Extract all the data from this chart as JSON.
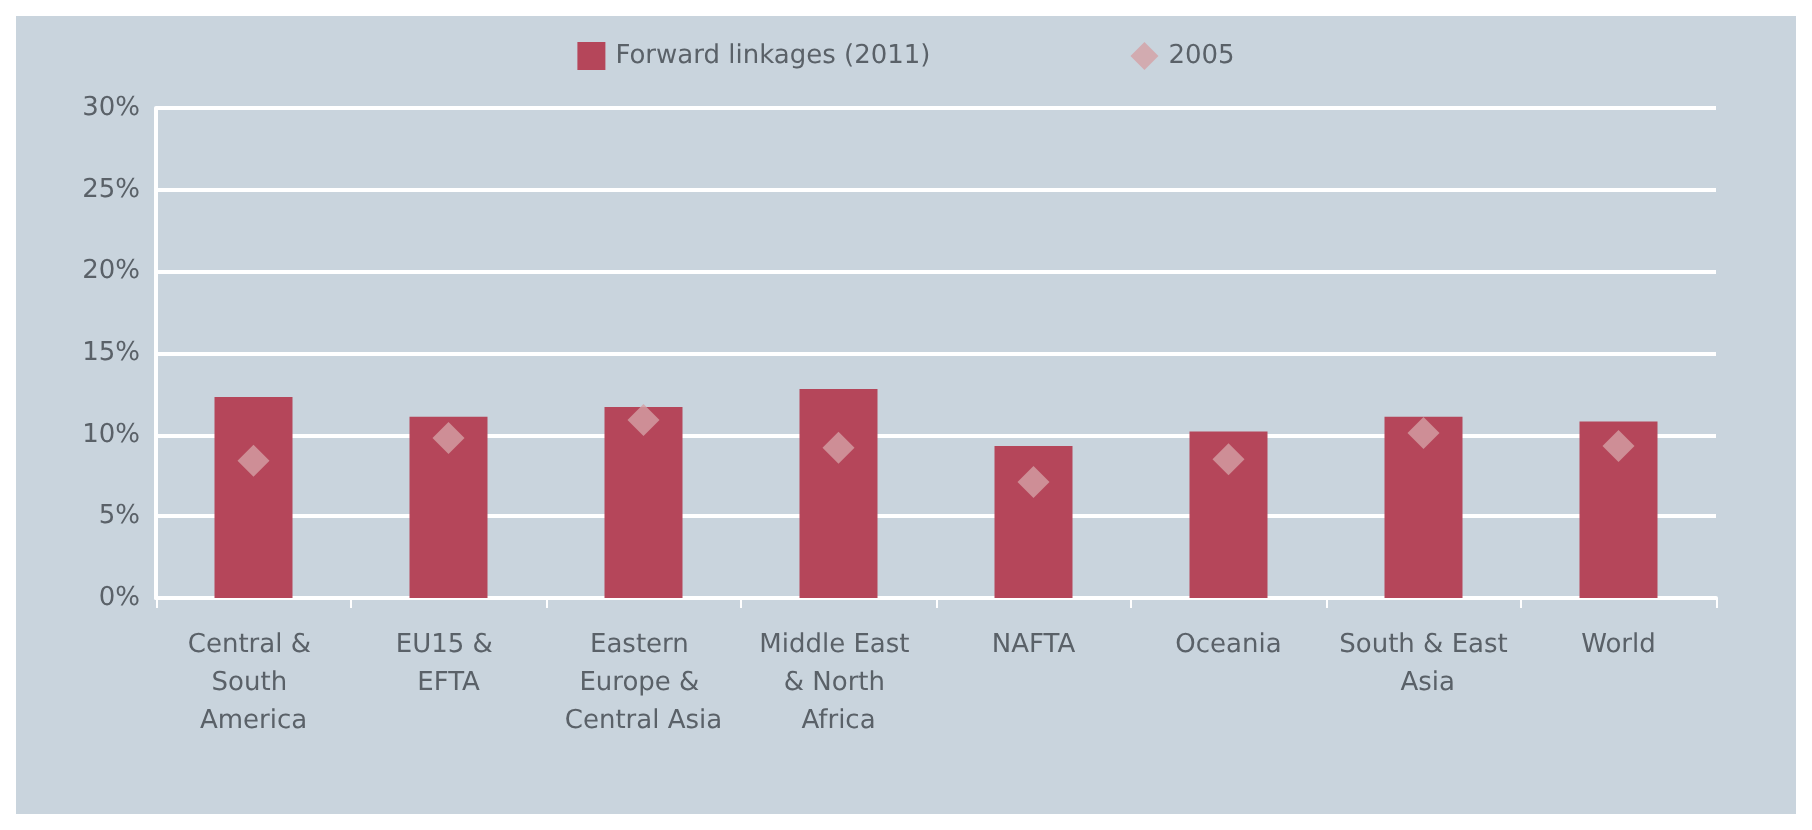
{
  "chart_data": {
    "type": "bar",
    "categories": [
      "Central & South America",
      "EU15 & EFTA",
      "Eastern Europe & Central Asia",
      "Middle East & North Africa",
      "NAFTA",
      "Oceania",
      "South & East Asia",
      "World"
    ],
    "series": [
      {
        "name": "Forward linkages (2011)",
        "color": "#b5465a",
        "values": [
          12.3,
          11.1,
          11.7,
          12.8,
          9.3,
          10.2,
          11.1,
          10.8
        ]
      },
      {
        "name": "2005",
        "type": "scatter",
        "color": "#d4a0a5",
        "marker": "diamond",
        "values": [
          8.4,
          9.8,
          10.9,
          9.2,
          7.1,
          8.5,
          10.1,
          9.3
        ]
      }
    ],
    "ylim": [
      0,
      30
    ],
    "yticks": [
      {
        "value": 0,
        "label": "0%"
      },
      {
        "value": 5,
        "label": "5%"
      },
      {
        "value": 10,
        "label": "10%"
      },
      {
        "value": 15,
        "label": "15%"
      },
      {
        "value": 20,
        "label": "20%"
      },
      {
        "value": 25,
        "label": "25%"
      },
      {
        "value": 30,
        "label": "30%"
      }
    ],
    "grid": "y",
    "legend": "top"
  }
}
